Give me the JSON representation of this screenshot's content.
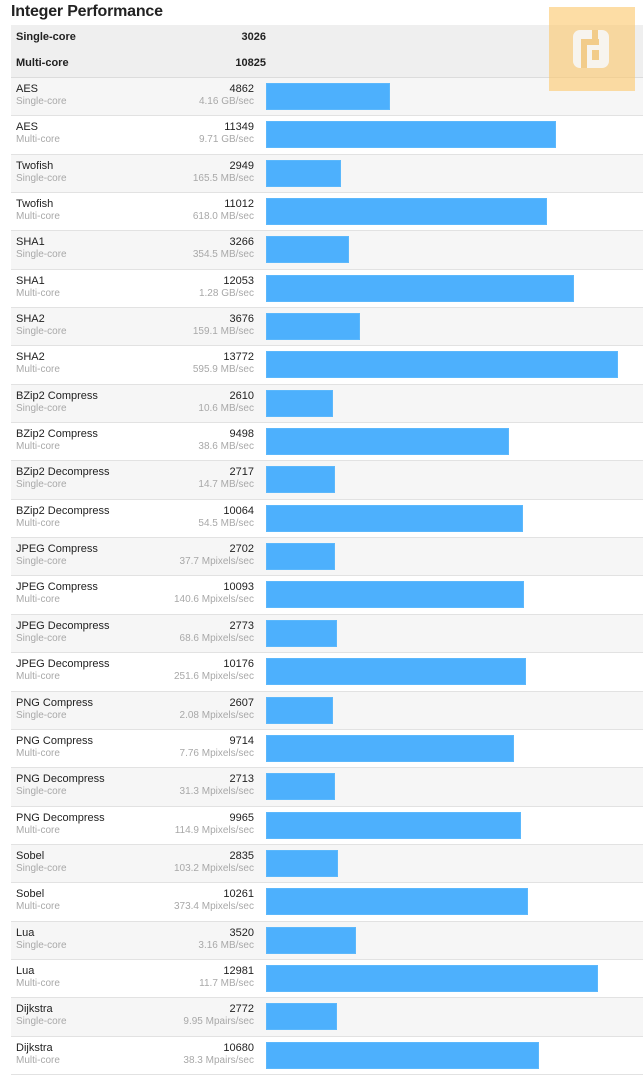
{
  "header": {
    "title": "Integer Performance"
  },
  "summary": [
    {
      "label": "Single-core",
      "score": "3026"
    },
    {
      "label": "Multi-core",
      "score": "10825"
    }
  ],
  "max_score": 13772,
  "bar_color": "#4db0fd",
  "logo": {
    "icon": "geekbench-logo-icon",
    "color": "#f9c978"
  },
  "rows": [
    {
      "name": "AES",
      "mode": "Single-core",
      "score": "4862",
      "rate": "4.16 GB/sec"
    },
    {
      "name": "AES",
      "mode": "Multi-core",
      "score": "11349",
      "rate": "9.71 GB/sec"
    },
    {
      "name": "Twofish",
      "mode": "Single-core",
      "score": "2949",
      "rate": "165.5 MB/sec"
    },
    {
      "name": "Twofish",
      "mode": "Multi-core",
      "score": "11012",
      "rate": "618.0 MB/sec"
    },
    {
      "name": "SHA1",
      "mode": "Single-core",
      "score": "3266",
      "rate": "354.5 MB/sec"
    },
    {
      "name": "SHA1",
      "mode": "Multi-core",
      "score": "12053",
      "rate": "1.28 GB/sec"
    },
    {
      "name": "SHA2",
      "mode": "Single-core",
      "score": "3676",
      "rate": "159.1 MB/sec"
    },
    {
      "name": "SHA2",
      "mode": "Multi-core",
      "score": "13772",
      "rate": "595.9 MB/sec"
    },
    {
      "name": "BZip2 Compress",
      "mode": "Single-core",
      "score": "2610",
      "rate": "10.6 MB/sec"
    },
    {
      "name": "BZip2 Compress",
      "mode": "Multi-core",
      "score": "9498",
      "rate": "38.6 MB/sec"
    },
    {
      "name": "BZip2 Decompress",
      "mode": "Single-core",
      "score": "2717",
      "rate": "14.7 MB/sec"
    },
    {
      "name": "BZip2 Decompress",
      "mode": "Multi-core",
      "score": "10064",
      "rate": "54.5 MB/sec"
    },
    {
      "name": "JPEG Compress",
      "mode": "Single-core",
      "score": "2702",
      "rate": "37.7 Mpixels/sec"
    },
    {
      "name": "JPEG Compress",
      "mode": "Multi-core",
      "score": "10093",
      "rate": "140.6 Mpixels/sec"
    },
    {
      "name": "JPEG Decompress",
      "mode": "Single-core",
      "score": "2773",
      "rate": "68.6 Mpixels/sec"
    },
    {
      "name": "JPEG Decompress",
      "mode": "Multi-core",
      "score": "10176",
      "rate": "251.6 Mpixels/sec"
    },
    {
      "name": "PNG Compress",
      "mode": "Single-core",
      "score": "2607",
      "rate": "2.08 Mpixels/sec"
    },
    {
      "name": "PNG Compress",
      "mode": "Multi-core",
      "score": "9714",
      "rate": "7.76 Mpixels/sec"
    },
    {
      "name": "PNG Decompress",
      "mode": "Single-core",
      "score": "2713",
      "rate": "31.3 Mpixels/sec"
    },
    {
      "name": "PNG Decompress",
      "mode": "Multi-core",
      "score": "9965",
      "rate": "114.9 Mpixels/sec"
    },
    {
      "name": "Sobel",
      "mode": "Single-core",
      "score": "2835",
      "rate": "103.2 Mpixels/sec"
    },
    {
      "name": "Sobel",
      "mode": "Multi-core",
      "score": "10261",
      "rate": "373.4 Mpixels/sec"
    },
    {
      "name": "Lua",
      "mode": "Single-core",
      "score": "3520",
      "rate": "3.16 MB/sec"
    },
    {
      "name": "Lua",
      "mode": "Multi-core",
      "score": "12981",
      "rate": "11.7 MB/sec"
    },
    {
      "name": "Dijkstra",
      "mode": "Single-core",
      "score": "2772",
      "rate": "9.95 Mpairs/sec"
    },
    {
      "name": "Dijkstra",
      "mode": "Multi-core",
      "score": "10680",
      "rate": "38.3 Mpairs/sec"
    }
  ],
  "chart_data": {
    "type": "bar",
    "title": "Integer Performance",
    "orientation": "horizontal",
    "xlabel": "",
    "ylabel": "",
    "grid": false,
    "summary": {
      "Single-core": 3026,
      "Multi-core": 10825
    },
    "categories": [
      "AES Single-core",
      "AES Multi-core",
      "Twofish Single-core",
      "Twofish Multi-core",
      "SHA1 Single-core",
      "SHA1 Multi-core",
      "SHA2 Single-core",
      "SHA2 Multi-core",
      "BZip2 Compress Single-core",
      "BZip2 Compress Multi-core",
      "BZip2 Decompress Single-core",
      "BZip2 Decompress Multi-core",
      "JPEG Compress Single-core",
      "JPEG Compress Multi-core",
      "JPEG Decompress Single-core",
      "JPEG Decompress Multi-core",
      "PNG Compress Single-core",
      "PNG Compress Multi-core",
      "PNG Decompress Single-core",
      "PNG Decompress Multi-core",
      "Sobel Single-core",
      "Sobel Multi-core",
      "Lua Single-core",
      "Lua Multi-core",
      "Dijkstra Single-core",
      "Dijkstra Multi-core"
    ],
    "values": [
      4862,
      11349,
      2949,
      11012,
      3266,
      12053,
      3676,
      13772,
      2610,
      9498,
      2717,
      10064,
      2702,
      10093,
      2773,
      10176,
      2607,
      9714,
      2713,
      9965,
      2835,
      10261,
      3520,
      12981,
      2772,
      10680
    ],
    "rates": [
      "4.16 GB/sec",
      "9.71 GB/sec",
      "165.5 MB/sec",
      "618.0 MB/sec",
      "354.5 MB/sec",
      "1.28 GB/sec",
      "159.1 MB/sec",
      "595.9 MB/sec",
      "10.6 MB/sec",
      "38.6 MB/sec",
      "14.7 MB/sec",
      "54.5 MB/sec",
      "37.7 Mpixels/sec",
      "140.6 Mpixels/sec",
      "68.6 Mpixels/sec",
      "251.6 Mpixels/sec",
      "2.08 Mpixels/sec",
      "7.76 Mpixels/sec",
      "31.3 Mpixels/sec",
      "114.9 Mpixels/sec",
      "103.2 Mpixels/sec",
      "373.4 Mpixels/sec",
      "3.16 MB/sec",
      "11.7 MB/sec",
      "9.95 Mpairs/sec",
      "38.3 Mpairs/sec"
    ]
  }
}
